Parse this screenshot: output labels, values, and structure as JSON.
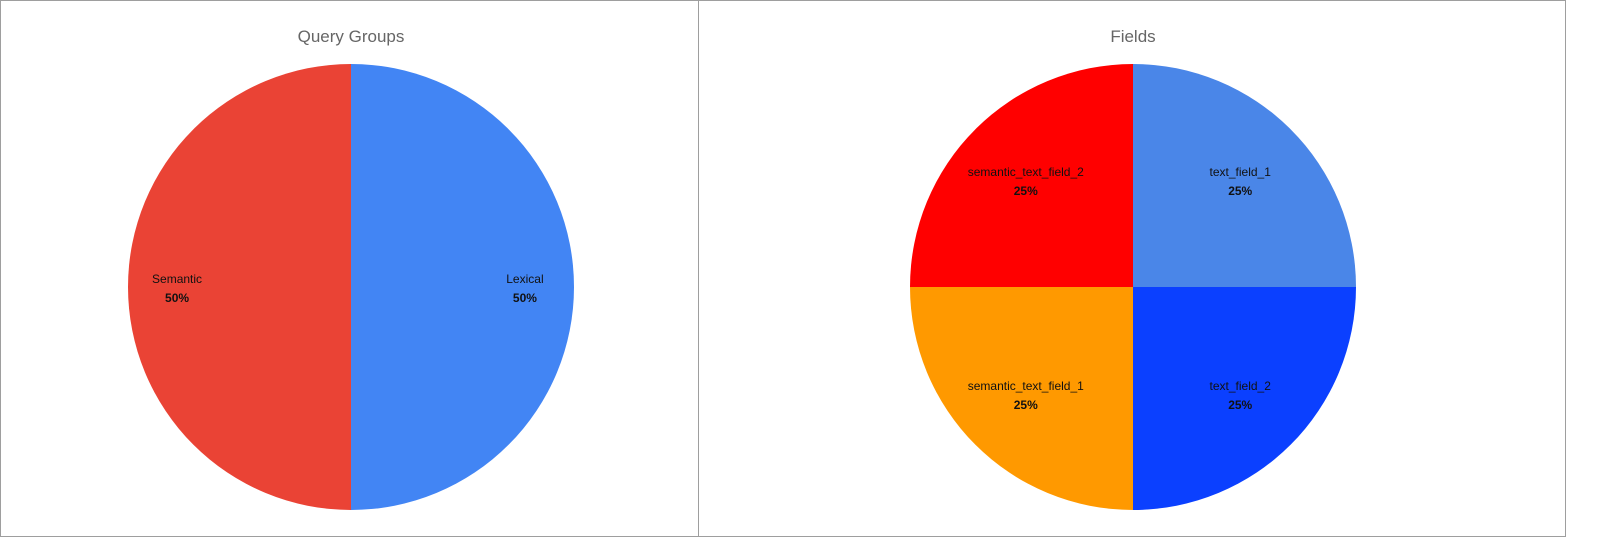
{
  "chart_data": [
    {
      "type": "pie",
      "title": "Query Groups",
      "categories": [
        "Lexical",
        "Semantic"
      ],
      "values": [
        50,
        50
      ],
      "labels": [
        "50%",
        "50%"
      ],
      "colors": [
        "#4285F4",
        "#EA4335"
      ],
      "start": "top",
      "direction": "clockwise"
    },
    {
      "type": "pie",
      "title": "Fields",
      "categories": [
        "text_field_1",
        "text_field_2",
        "semantic_text_field_1",
        "semantic_text_field_2"
      ],
      "values": [
        25,
        25,
        25,
        25
      ],
      "labels": [
        "25%",
        "25%",
        "25%",
        "25%"
      ],
      "colors": [
        "#4A86E8",
        "#0B40FF",
        "#FF9900",
        "#FF0000"
      ],
      "start": "top",
      "direction": "clockwise"
    }
  ]
}
